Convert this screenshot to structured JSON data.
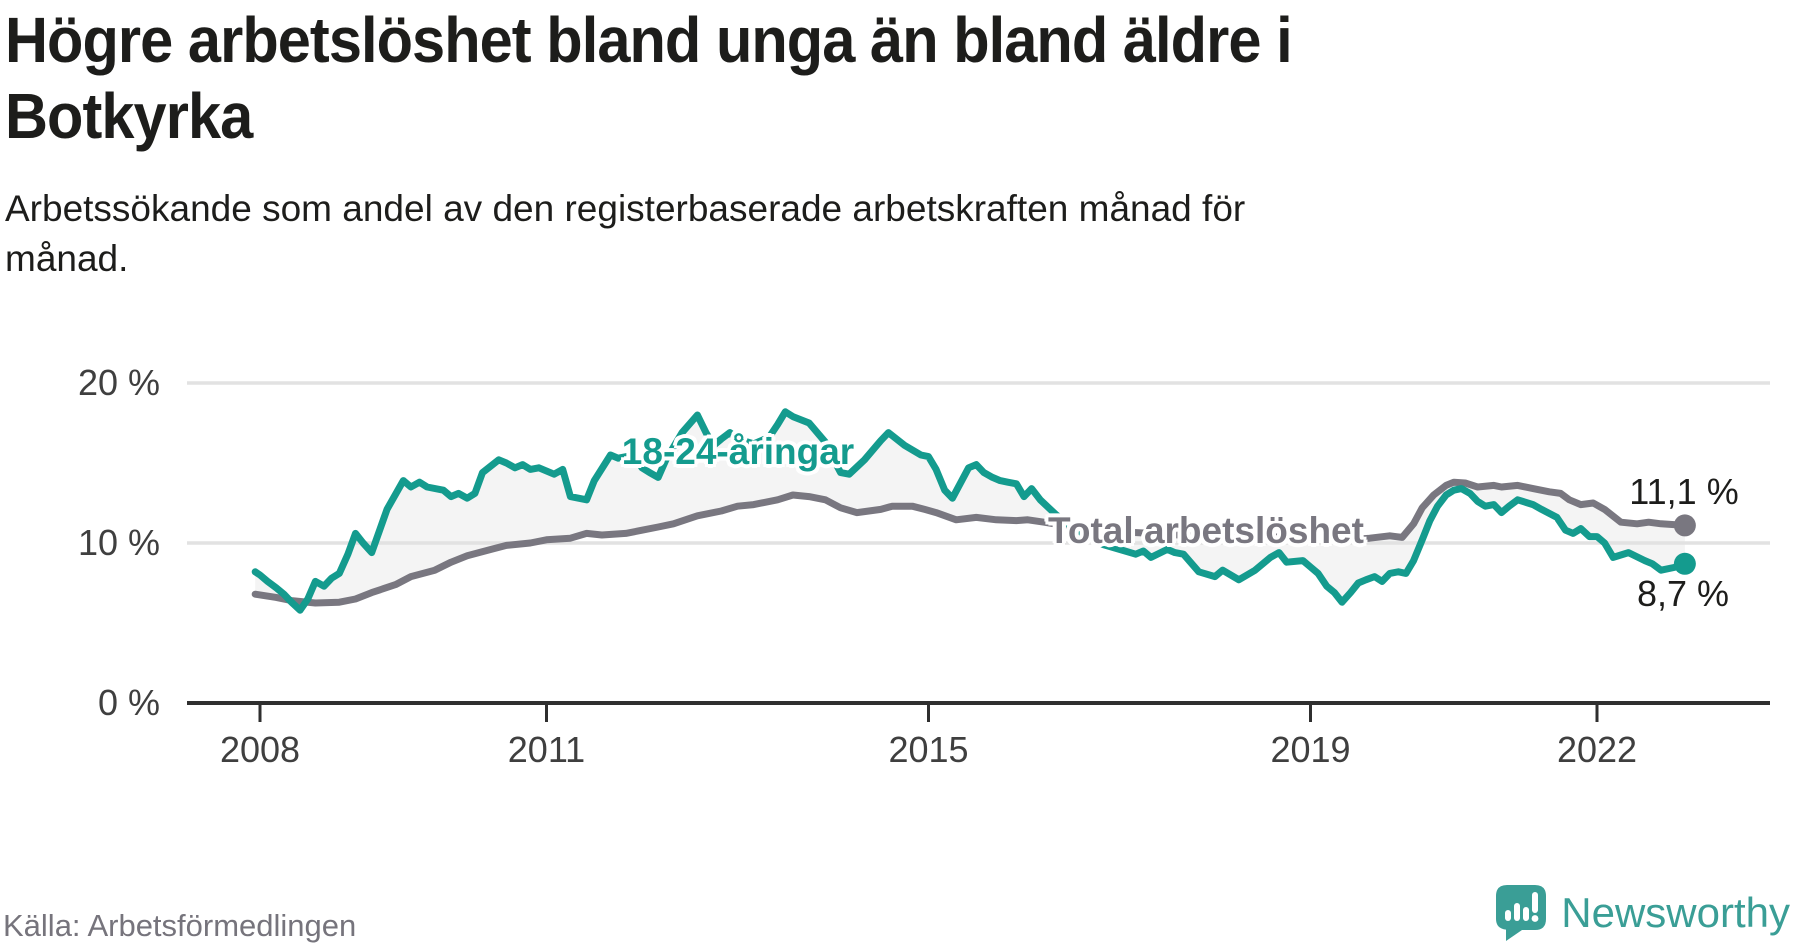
{
  "header": {
    "title_line1": "Högre arbetslöshet bland unga än bland äldre i",
    "title_line2": "Botkyrka",
    "subtitle_line1": "Arbetssökande som andel av den registerbaserade arbetskraften månad för",
    "subtitle_line2": "månad."
  },
  "footer": {
    "source": "Källa: Arbetsförmedlingen",
    "brand": "Newsworthy"
  },
  "chart_data": {
    "type": "line",
    "title": "Högre arbetslöshet bland unga än bland äldre i Botkyrka",
    "subtitle": "Arbetssökande som andel av den registerbaserade arbetskraften månad för månad.",
    "unit": "%",
    "grid": "horizontal-only",
    "x_axis": {
      "ticks": [
        2008,
        2011,
        2015,
        2019,
        2022
      ],
      "labels": [
        "2008",
        "2011",
        "2015",
        "2019",
        "2022"
      ],
      "range": [
        2007.9,
        2023.1
      ]
    },
    "y_axis": {
      "ticks": [
        0,
        10,
        20
      ],
      "labels": [
        "0 %",
        "10 %",
        "20 %"
      ],
      "range": [
        0,
        20
      ]
    },
    "annotations": {
      "young_label": "18-24-åringar",
      "total_label": "Total arbetslöshet",
      "total_end_label": "11,1 %",
      "young_end_label": "8,7 %"
    },
    "colors": {
      "young": "#149b8e",
      "total": "#797780",
      "fill": "#f4f4f4",
      "grid": "#e2e2e2",
      "axis": "#2f2f2f",
      "brand": "#3a9e96"
    },
    "series": [
      {
        "name": "Total arbetslöshet",
        "color_key": "total",
        "end_value": 11.1,
        "points": [
          [
            2007.95,
            6.8
          ],
          [
            2008.17,
            6.6
          ],
          [
            2008.33,
            6.4
          ],
          [
            2008.58,
            6.25
          ],
          [
            2008.83,
            6.3
          ],
          [
            2009.0,
            6.5
          ],
          [
            2009.17,
            6.9
          ],
          [
            2009.42,
            7.4
          ],
          [
            2009.58,
            7.9
          ],
          [
            2009.83,
            8.3
          ],
          [
            2010.0,
            8.8
          ],
          [
            2010.17,
            9.2
          ],
          [
            2010.42,
            9.6
          ],
          [
            2010.58,
            9.85
          ],
          [
            2010.83,
            10.0
          ],
          [
            2011.0,
            10.2
          ],
          [
            2011.25,
            10.3
          ],
          [
            2011.42,
            10.6
          ],
          [
            2011.58,
            10.5
          ],
          [
            2011.83,
            10.6
          ],
          [
            2012.0,
            10.8
          ],
          [
            2012.17,
            11.0
          ],
          [
            2012.33,
            11.2
          ],
          [
            2012.58,
            11.7
          ],
          [
            2012.83,
            12.0
          ],
          [
            2013.0,
            12.3
          ],
          [
            2013.17,
            12.4
          ],
          [
            2013.42,
            12.7
          ],
          [
            2013.58,
            13.0
          ],
          [
            2013.75,
            12.9
          ],
          [
            2013.92,
            12.7
          ],
          [
            2014.08,
            12.2
          ],
          [
            2014.25,
            11.9
          ],
          [
            2014.5,
            12.1
          ],
          [
            2014.62,
            12.3
          ],
          [
            2014.83,
            12.3
          ],
          [
            2014.96,
            12.1
          ],
          [
            2015.08,
            11.9
          ],
          [
            2015.29,
            11.45
          ],
          [
            2015.5,
            11.6
          ],
          [
            2015.71,
            11.45
          ],
          [
            2015.92,
            11.4
          ],
          [
            2016.04,
            11.45
          ],
          [
            2016.21,
            11.3
          ],
          [
            2016.42,
            11.1
          ],
          [
            2016.62,
            10.9
          ],
          [
            2016.83,
            10.8
          ],
          [
            2017.0,
            10.7
          ],
          [
            2017.33,
            10.6
          ],
          [
            2017.62,
            10.5
          ],
          [
            2018.0,
            10.45
          ],
          [
            2018.42,
            10.4
          ],
          [
            2018.83,
            10.35
          ],
          [
            2019.08,
            10.3
          ],
          [
            2019.42,
            10.2
          ],
          [
            2019.62,
            10.3
          ],
          [
            2019.83,
            10.45
          ],
          [
            2019.96,
            10.35
          ],
          [
            2020.08,
            11.2
          ],
          [
            2020.17,
            12.2
          ],
          [
            2020.29,
            13.0
          ],
          [
            2020.42,
            13.6
          ],
          [
            2020.5,
            13.8
          ],
          [
            2020.62,
            13.75
          ],
          [
            2020.75,
            13.5
          ],
          [
            2020.92,
            13.6
          ],
          [
            2021.0,
            13.5
          ],
          [
            2021.17,
            13.6
          ],
          [
            2021.33,
            13.4
          ],
          [
            2021.5,
            13.2
          ],
          [
            2021.62,
            13.1
          ],
          [
            2021.71,
            12.7
          ],
          [
            2021.83,
            12.4
          ],
          [
            2021.96,
            12.5
          ],
          [
            2022.08,
            12.1
          ],
          [
            2022.25,
            11.3
          ],
          [
            2022.42,
            11.2
          ],
          [
            2022.54,
            11.3
          ],
          [
            2022.67,
            11.2
          ],
          [
            2022.92,
            11.1
          ]
        ]
      },
      {
        "name": "18-24-åringar",
        "color_key": "young",
        "end_value": 8.7,
        "points": [
          [
            2007.95,
            8.2
          ],
          [
            2008.0,
            8.0
          ],
          [
            2008.08,
            7.6
          ],
          [
            2008.17,
            7.2
          ],
          [
            2008.25,
            6.8
          ],
          [
            2008.33,
            6.3
          ],
          [
            2008.42,
            5.8
          ],
          [
            2008.5,
            6.5
          ],
          [
            2008.58,
            7.6
          ],
          [
            2008.67,
            7.3
          ],
          [
            2008.75,
            7.8
          ],
          [
            2008.83,
            8.1
          ],
          [
            2008.92,
            9.3
          ],
          [
            2009.0,
            10.6
          ],
          [
            2009.08,
            10.0
          ],
          [
            2009.17,
            9.4
          ],
          [
            2009.33,
            12.1
          ],
          [
            2009.5,
            13.9
          ],
          [
            2009.58,
            13.5
          ],
          [
            2009.67,
            13.8
          ],
          [
            2009.75,
            13.5
          ],
          [
            2009.92,
            13.3
          ],
          [
            2010.0,
            12.9
          ],
          [
            2010.08,
            13.1
          ],
          [
            2010.17,
            12.8
          ],
          [
            2010.25,
            13.1
          ],
          [
            2010.33,
            14.4
          ],
          [
            2010.5,
            15.2
          ],
          [
            2010.58,
            15.0
          ],
          [
            2010.67,
            14.7
          ],
          [
            2010.75,
            14.9
          ],
          [
            2010.83,
            14.6
          ],
          [
            2010.92,
            14.7
          ],
          [
            2011.08,
            14.3
          ],
          [
            2011.17,
            14.6
          ],
          [
            2011.25,
            12.9
          ],
          [
            2011.42,
            12.7
          ],
          [
            2011.5,
            13.9
          ],
          [
            2011.67,
            15.5
          ],
          [
            2011.75,
            15.3
          ],
          [
            2011.92,
            15.5
          ],
          [
            2012.0,
            14.7
          ],
          [
            2012.08,
            14.4
          ],
          [
            2012.17,
            14.1
          ],
          [
            2012.25,
            15.2
          ],
          [
            2012.42,
            16.9
          ],
          [
            2012.58,
            18.0
          ],
          [
            2012.67,
            16.9
          ],
          [
            2012.75,
            16.1
          ],
          [
            2012.83,
            16.5
          ],
          [
            2012.92,
            16.9
          ],
          [
            2013.0,
            16.5
          ],
          [
            2013.17,
            16.2
          ],
          [
            2013.33,
            16.6
          ],
          [
            2013.42,
            17.4
          ],
          [
            2013.5,
            18.2
          ],
          [
            2013.58,
            17.9
          ],
          [
            2013.75,
            17.5
          ],
          [
            2013.92,
            16.3
          ],
          [
            2014.0,
            15.3
          ],
          [
            2014.08,
            14.4
          ],
          [
            2014.17,
            14.3
          ],
          [
            2014.33,
            15.2
          ],
          [
            2014.5,
            16.4
          ],
          [
            2014.58,
            16.9
          ],
          [
            2014.75,
            16.1
          ],
          [
            2014.92,
            15.5
          ],
          [
            2015.0,
            15.4
          ],
          [
            2015.08,
            14.6
          ],
          [
            2015.17,
            13.3
          ],
          [
            2015.25,
            12.8
          ],
          [
            2015.42,
            14.7
          ],
          [
            2015.5,
            14.9
          ],
          [
            2015.58,
            14.4
          ],
          [
            2015.67,
            14.1
          ],
          [
            2015.75,
            13.9
          ],
          [
            2015.83,
            13.8
          ],
          [
            2015.92,
            13.7
          ],
          [
            2016.0,
            12.9
          ],
          [
            2016.08,
            13.4
          ],
          [
            2016.17,
            12.7
          ],
          [
            2016.33,
            11.8
          ],
          [
            2016.5,
            11.0
          ],
          [
            2016.67,
            10.4
          ],
          [
            2016.83,
            9.9
          ],
          [
            2017.0,
            9.6
          ],
          [
            2017.17,
            9.3
          ],
          [
            2017.25,
            9.5
          ],
          [
            2017.33,
            9.1
          ],
          [
            2017.5,
            9.6
          ],
          [
            2017.58,
            9.4
          ],
          [
            2017.67,
            9.3
          ],
          [
            2017.83,
            8.2
          ],
          [
            2018.0,
            7.9
          ],
          [
            2018.08,
            8.3
          ],
          [
            2018.25,
            7.7
          ],
          [
            2018.42,
            8.3
          ],
          [
            2018.58,
            9.1
          ],
          [
            2018.67,
            9.4
          ],
          [
            2018.75,
            8.8
          ],
          [
            2018.92,
            8.9
          ],
          [
            2019.0,
            8.5
          ],
          [
            2019.08,
            8.1
          ],
          [
            2019.17,
            7.3
          ],
          [
            2019.25,
            6.9
          ],
          [
            2019.33,
            6.3
          ],
          [
            2019.42,
            6.9
          ],
          [
            2019.5,
            7.5
          ],
          [
            2019.58,
            7.7
          ],
          [
            2019.67,
            7.9
          ],
          [
            2019.75,
            7.6
          ],
          [
            2019.83,
            8.1
          ],
          [
            2019.92,
            8.2
          ],
          [
            2020.0,
            8.1
          ],
          [
            2020.08,
            8.9
          ],
          [
            2020.17,
            10.2
          ],
          [
            2020.25,
            11.4
          ],
          [
            2020.33,
            12.3
          ],
          [
            2020.42,
            13.0
          ],
          [
            2020.5,
            13.3
          ],
          [
            2020.58,
            13.4
          ],
          [
            2020.67,
            13.1
          ],
          [
            2020.75,
            12.6
          ],
          [
            2020.83,
            12.3
          ],
          [
            2020.92,
            12.4
          ],
          [
            2021.0,
            11.9
          ],
          [
            2021.08,
            12.3
          ],
          [
            2021.17,
            12.7
          ],
          [
            2021.33,
            12.4
          ],
          [
            2021.42,
            12.1
          ],
          [
            2021.58,
            11.6
          ],
          [
            2021.67,
            10.8
          ],
          [
            2021.75,
            10.6
          ],
          [
            2021.83,
            10.9
          ],
          [
            2021.92,
            10.4
          ],
          [
            2022.0,
            10.4
          ],
          [
            2022.08,
            10.0
          ],
          [
            2022.17,
            9.1
          ],
          [
            2022.33,
            9.4
          ],
          [
            2022.5,
            8.9
          ],
          [
            2022.58,
            8.7
          ],
          [
            2022.67,
            8.3
          ],
          [
            2022.83,
            8.5
          ],
          [
            2022.92,
            8.7
          ]
        ]
      }
    ]
  }
}
